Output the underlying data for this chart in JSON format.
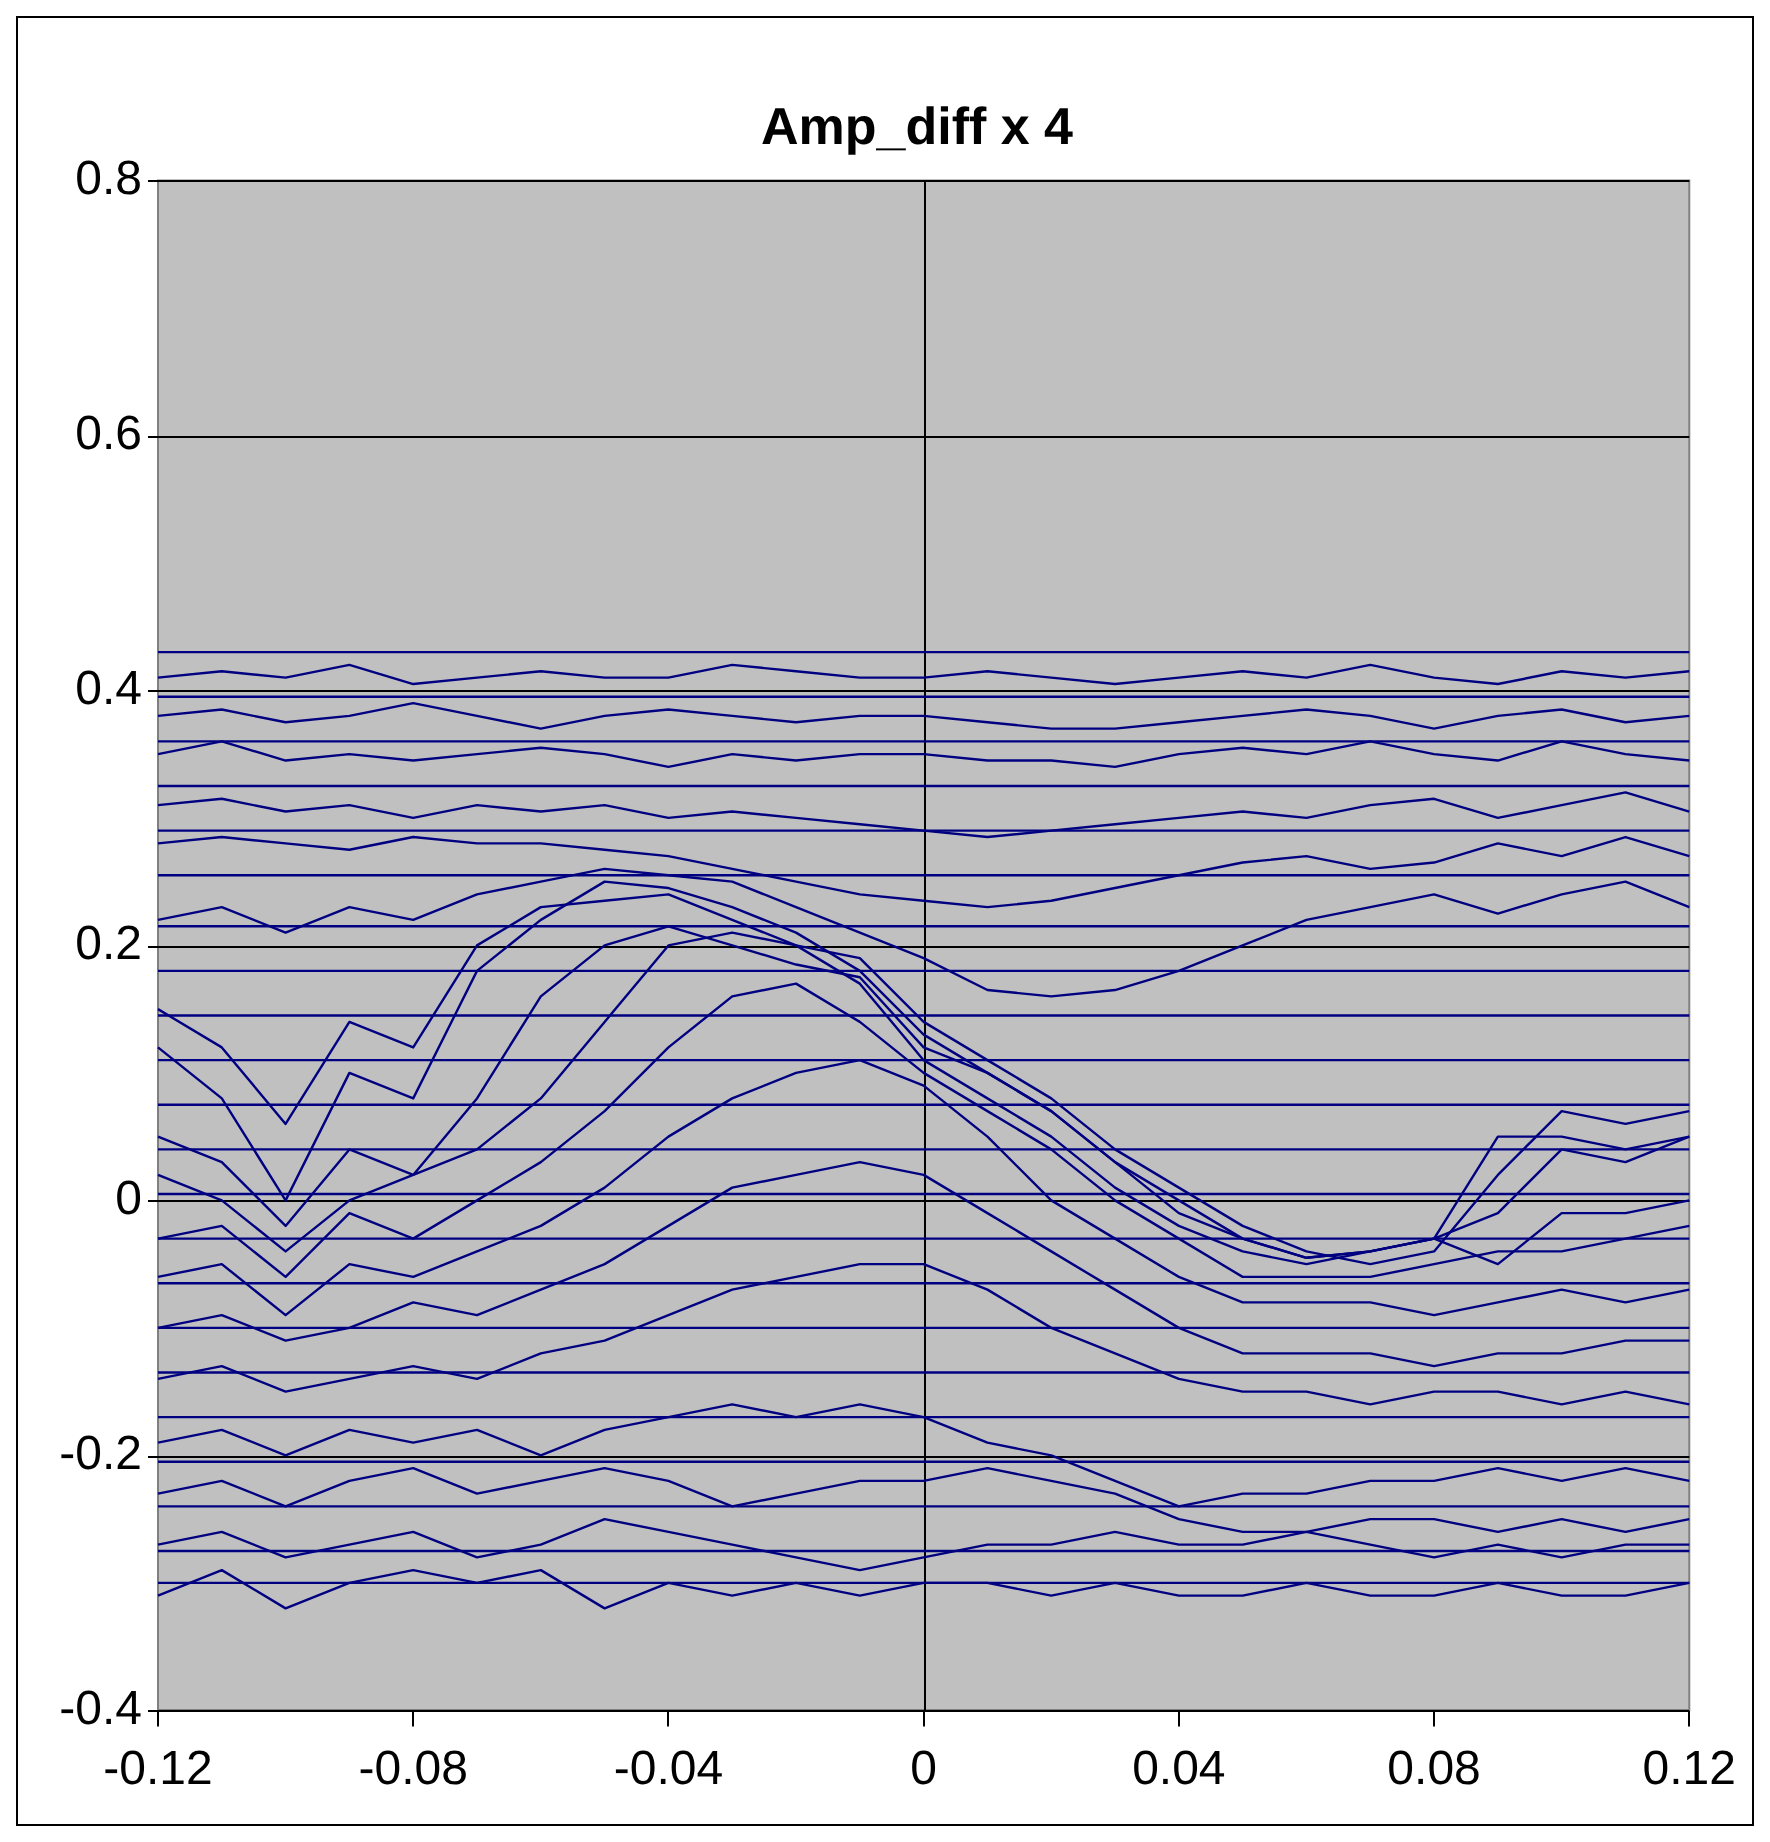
{
  "chart_data": {
    "type": "line",
    "title": "Amp_diff x 4",
    "x": [
      -0.12,
      -0.11,
      -0.1,
      -0.09,
      -0.08,
      -0.07,
      -0.06,
      -0.05,
      -0.04,
      -0.03,
      -0.02,
      -0.01,
      0,
      0.01,
      0.02,
      0.03,
      0.04,
      0.05,
      0.06,
      0.07,
      0.08,
      0.09,
      0.1,
      0.11,
      0.12
    ],
    "xlim": [
      -0.12,
      0.12
    ],
    "xticks": [
      -0.12,
      -0.08,
      -0.04,
      0,
      0.04,
      0.08,
      0.12
    ],
    "ylim": [
      -0.4,
      0.8
    ],
    "yticks": [
      -0.4,
      -0.2,
      0,
      0.2,
      0.4,
      0.6,
      0.8
    ],
    "grid": "y",
    "ref_lines": [
      {
        "axis": "x",
        "value": 0,
        "color": "#000000"
      }
    ],
    "marker": "none",
    "line_style": "solid",
    "series": [
      {
        "color": "#000080",
        "values": [
          0.41,
          0.415,
          0.41,
          0.42,
          0.405,
          0.41,
          0.415,
          0.41,
          0.41,
          0.42,
          0.415,
          0.41,
          0.41,
          0.415,
          0.41,
          0.405,
          0.41,
          0.415,
          0.41,
          0.42,
          0.41,
          0.405,
          0.415,
          0.41,
          0.415
        ]
      },
      {
        "color": "#000080",
        "values": [
          0.38,
          0.385,
          0.375,
          0.38,
          0.39,
          0.38,
          0.37,
          0.38,
          0.385,
          0.38,
          0.375,
          0.38,
          0.38,
          0.375,
          0.37,
          0.37,
          0.375,
          0.38,
          0.385,
          0.38,
          0.37,
          0.38,
          0.385,
          0.375,
          0.38
        ]
      },
      {
        "color": "#000080",
        "values": [
          0.35,
          0.36,
          0.345,
          0.35,
          0.345,
          0.35,
          0.355,
          0.35,
          0.34,
          0.35,
          0.345,
          0.35,
          0.35,
          0.345,
          0.345,
          0.34,
          0.35,
          0.355,
          0.35,
          0.36,
          0.35,
          0.345,
          0.36,
          0.35,
          0.345
        ]
      },
      {
        "color": "#000080",
        "values": [
          0.31,
          0.315,
          0.305,
          0.31,
          0.3,
          0.31,
          0.305,
          0.31,
          0.3,
          0.305,
          0.3,
          0.295,
          0.29,
          0.285,
          0.29,
          0.295,
          0.3,
          0.305,
          0.3,
          0.31,
          0.315,
          0.3,
          0.31,
          0.32,
          0.305
        ]
      },
      {
        "color": "#000080",
        "values": [
          0.28,
          0.285,
          0.28,
          0.275,
          0.285,
          0.28,
          0.28,
          0.275,
          0.27,
          0.26,
          0.25,
          0.24,
          0.235,
          0.23,
          0.235,
          0.245,
          0.255,
          0.265,
          0.27,
          0.26,
          0.265,
          0.28,
          0.27,
          0.285,
          0.27
        ]
      },
      {
        "color": "#000080",
        "values": [
          0.22,
          0.23,
          0.21,
          0.23,
          0.22,
          0.24,
          0.25,
          0.26,
          0.255,
          0.25,
          0.23,
          0.21,
          0.19,
          0.165,
          0.16,
          0.165,
          0.18,
          0.2,
          0.22,
          0.23,
          0.24,
          0.225,
          0.24,
          0.25,
          0.23
        ]
      },
      {
        "color": "#000080",
        "values": [
          0.12,
          0.08,
          0,
          0.1,
          0.08,
          0.18,
          0.22,
          0.25,
          0.245,
          0.23,
          0.21,
          0.18,
          0.13,
          0.1,
          0.07,
          0.03,
          0,
          -0.03,
          -0.045,
          -0.04,
          -0.03,
          0.05,
          0.05,
          0.04,
          0.05
        ]
      },
      {
        "color": "#000080",
        "values": [
          0.15,
          0.12,
          0.06,
          0.14,
          0.12,
          0.2,
          0.23,
          0.235,
          0.24,
          0.22,
          0.2,
          0.19,
          0.14,
          0.11,
          0.08,
          0.04,
          0.01,
          -0.02,
          -0.04,
          -0.05,
          -0.04,
          0.02,
          0.07,
          0.06,
          0.07
        ]
      },
      {
        "color": "#000080",
        "values": [
          0.05,
          0.03,
          -0.02,
          0.04,
          0.02,
          0.08,
          0.16,
          0.2,
          0.215,
          0.2,
          0.185,
          0.175,
          0.12,
          0.1,
          0.07,
          0.03,
          -0.01,
          -0.03,
          -0.045,
          -0.04,
          -0.03,
          -0.01,
          0.04,
          0.03,
          0.05
        ]
      },
      {
        "color": "#000080",
        "values": [
          0.02,
          0,
          -0.04,
          0,
          0.02,
          0.04,
          0.08,
          0.14,
          0.2,
          0.21,
          0.2,
          0.17,
          0.11,
          0.08,
          0.05,
          0.01,
          -0.02,
          -0.04,
          -0.05,
          -0.04,
          -0.03,
          -0.05,
          -0.01,
          -0.01,
          0
        ]
      },
      {
        "color": "#000080",
        "values": [
          -0.03,
          -0.02,
          -0.06,
          -0.01,
          -0.03,
          0,
          0.03,
          0.07,
          0.12,
          0.16,
          0.17,
          0.14,
          0.1,
          0.07,
          0.04,
          0,
          -0.03,
          -0.06,
          -0.06,
          -0.06,
          -0.05,
          -0.04,
          -0.04,
          -0.03,
          -0.02
        ]
      },
      {
        "color": "#000080",
        "values": [
          -0.06,
          -0.05,
          -0.09,
          -0.05,
          -0.06,
          -0.04,
          -0.02,
          0.01,
          0.05,
          0.08,
          0.1,
          0.11,
          0.09,
          0.05,
          0,
          -0.03,
          -0.06,
          -0.08,
          -0.08,
          -0.08,
          -0.09,
          -0.08,
          -0.07,
          -0.08,
          -0.07
        ]
      },
      {
        "color": "#000080",
        "values": [
          -0.1,
          -0.09,
          -0.11,
          -0.1,
          -0.08,
          -0.09,
          -0.07,
          -0.05,
          -0.02,
          0.01,
          0.02,
          0.03,
          0.02,
          -0.01,
          -0.04,
          -0.07,
          -0.1,
          -0.12,
          -0.12,
          -0.12,
          -0.13,
          -0.12,
          -0.12,
          -0.11,
          -0.11
        ]
      },
      {
        "color": "#000080",
        "values": [
          -0.14,
          -0.13,
          -0.15,
          -0.14,
          -0.13,
          -0.14,
          -0.12,
          -0.11,
          -0.09,
          -0.07,
          -0.06,
          -0.05,
          -0.05,
          -0.07,
          -0.1,
          -0.12,
          -0.14,
          -0.15,
          -0.15,
          -0.16,
          -0.15,
          -0.15,
          -0.16,
          -0.15,
          -0.16
        ]
      },
      {
        "color": "#000080",
        "values": [
          -0.19,
          -0.18,
          -0.2,
          -0.18,
          -0.19,
          -0.18,
          -0.2,
          -0.18,
          -0.17,
          -0.16,
          -0.17,
          -0.16,
          -0.17,
          -0.19,
          -0.2,
          -0.22,
          -0.24,
          -0.23,
          -0.23,
          -0.22,
          -0.22,
          -0.21,
          -0.22,
          -0.21,
          -0.22
        ]
      },
      {
        "color": "#000080",
        "values": [
          -0.23,
          -0.22,
          -0.24,
          -0.22,
          -0.21,
          -0.23,
          -0.22,
          -0.21,
          -0.22,
          -0.24,
          -0.23,
          -0.22,
          -0.22,
          -0.21,
          -0.22,
          -0.23,
          -0.25,
          -0.26,
          -0.26,
          -0.25,
          -0.25,
          -0.26,
          -0.25,
          -0.26,
          -0.25
        ]
      },
      {
        "color": "#000080",
        "values": [
          -0.27,
          -0.26,
          -0.28,
          -0.27,
          -0.26,
          -0.28,
          -0.27,
          -0.25,
          -0.26,
          -0.27,
          -0.28,
          -0.29,
          -0.28,
          -0.27,
          -0.27,
          -0.26,
          -0.27,
          -0.27,
          -0.26,
          -0.27,
          -0.28,
          -0.27,
          -0.28,
          -0.27,
          -0.27
        ]
      },
      {
        "color": "#000080",
        "values": [
          -0.31,
          -0.29,
          -0.32,
          -0.3,
          -0.29,
          -0.3,
          -0.29,
          -0.32,
          -0.3,
          -0.31,
          -0.3,
          -0.31,
          -0.3,
          -0.3,
          -0.31,
          -0.3,
          -0.31,
          -0.31,
          -0.3,
          -0.31,
          -0.31,
          -0.3,
          -0.31,
          -0.31,
          -0.3
        ]
      },
      {
        "color": "#000080",
        "values": [
          0.43,
          0.43,
          0.43,
          0.43,
          0.43,
          0.43,
          0.43,
          0.43,
          0.43,
          0.43,
          0.43,
          0.43,
          0.43,
          0.43,
          0.43,
          0.43,
          0.43,
          0.43,
          0.43,
          0.43,
          0.43,
          0.43,
          0.43,
          0.43,
          0.43
        ]
      },
      {
        "color": "#000080",
        "values": [
          0.395,
          0.395,
          0.395,
          0.395,
          0.395,
          0.395,
          0.395,
          0.395,
          0.395,
          0.395,
          0.395,
          0.395,
          0.395,
          0.395,
          0.395,
          0.395,
          0.395,
          0.395,
          0.395,
          0.395,
          0.395,
          0.395,
          0.395,
          0.395,
          0.395
        ]
      },
      {
        "color": "#000080",
        "values": [
          0.36,
          0.36,
          0.36,
          0.36,
          0.36,
          0.36,
          0.36,
          0.36,
          0.36,
          0.36,
          0.36,
          0.36,
          0.36,
          0.36,
          0.36,
          0.36,
          0.36,
          0.36,
          0.36,
          0.36,
          0.36,
          0.36,
          0.36,
          0.36,
          0.36
        ]
      },
      {
        "color": "#000080",
        "values": [
          0.325,
          0.325,
          0.325,
          0.325,
          0.325,
          0.325,
          0.325,
          0.325,
          0.325,
          0.325,
          0.325,
          0.325,
          0.325,
          0.325,
          0.325,
          0.325,
          0.325,
          0.325,
          0.325,
          0.325,
          0.325,
          0.325,
          0.325,
          0.325,
          0.325
        ]
      },
      {
        "color": "#000080",
        "values": [
          0.29,
          0.29,
          0.29,
          0.29,
          0.29,
          0.29,
          0.29,
          0.29,
          0.29,
          0.29,
          0.29,
          0.29,
          0.29,
          0.29,
          0.29,
          0.29,
          0.29,
          0.29,
          0.29,
          0.29,
          0.29,
          0.29,
          0.29,
          0.29,
          0.29
        ]
      },
      {
        "color": "#000080",
        "values": [
          0.255,
          0.255,
          0.255,
          0.255,
          0.255,
          0.255,
          0.255,
          0.255,
          0.255,
          0.255,
          0.255,
          0.255,
          0.255,
          0.255,
          0.255,
          0.255,
          0.255,
          0.255,
          0.255,
          0.255,
          0.255,
          0.255,
          0.255,
          0.255,
          0.255
        ]
      },
      {
        "color": "#000080",
        "values": [
          0.215,
          0.215,
          0.215,
          0.215,
          0.215,
          0.215,
          0.215,
          0.215,
          0.215,
          0.215,
          0.215,
          0.215,
          0.215,
          0.215,
          0.215,
          0.215,
          0.215,
          0.215,
          0.215,
          0.215,
          0.215,
          0.215,
          0.215,
          0.215,
          0.215
        ]
      },
      {
        "color": "#000080",
        "values": [
          0.18,
          0.18,
          0.18,
          0.18,
          0.18,
          0.18,
          0.18,
          0.18,
          0.18,
          0.18,
          0.18,
          0.18,
          0.18,
          0.18,
          0.18,
          0.18,
          0.18,
          0.18,
          0.18,
          0.18,
          0.18,
          0.18,
          0.18,
          0.18,
          0.18
        ]
      },
      {
        "color": "#000080",
        "values": [
          0.145,
          0.145,
          0.145,
          0.145,
          0.145,
          0.145,
          0.145,
          0.145,
          0.145,
          0.145,
          0.145,
          0.145,
          0.145,
          0.145,
          0.145,
          0.145,
          0.145,
          0.145,
          0.145,
          0.145,
          0.145,
          0.145,
          0.145,
          0.145,
          0.145
        ]
      },
      {
        "color": "#000080",
        "values": [
          0.11,
          0.11,
          0.11,
          0.11,
          0.11,
          0.11,
          0.11,
          0.11,
          0.11,
          0.11,
          0.11,
          0.11,
          0.11,
          0.11,
          0.11,
          0.11,
          0.11,
          0.11,
          0.11,
          0.11,
          0.11,
          0.11,
          0.11,
          0.11,
          0.11
        ]
      },
      {
        "color": "#000080",
        "values": [
          0.075,
          0.075,
          0.075,
          0.075,
          0.075,
          0.075,
          0.075,
          0.075,
          0.075,
          0.075,
          0.075,
          0.075,
          0.075,
          0.075,
          0.075,
          0.075,
          0.075,
          0.075,
          0.075,
          0.075,
          0.075,
          0.075,
          0.075,
          0.075,
          0.075
        ]
      },
      {
        "color": "#000080",
        "values": [
          0.04,
          0.04,
          0.04,
          0.04,
          0.04,
          0.04,
          0.04,
          0.04,
          0.04,
          0.04,
          0.04,
          0.04,
          0.04,
          0.04,
          0.04,
          0.04,
          0.04,
          0.04,
          0.04,
          0.04,
          0.04,
          0.04,
          0.04,
          0.04,
          0.04
        ]
      },
      {
        "color": "#000080",
        "values": [
          0.005,
          0.005,
          0.005,
          0.005,
          0.005,
          0.005,
          0.005,
          0.005,
          0.005,
          0.005,
          0.005,
          0.005,
          0.005,
          0.005,
          0.005,
          0.005,
          0.005,
          0.005,
          0.005,
          0.005,
          0.005,
          0.005,
          0.005,
          0.005,
          0.005
        ]
      },
      {
        "color": "#000080",
        "values": [
          -0.03,
          -0.03,
          -0.03,
          -0.03,
          -0.03,
          -0.03,
          -0.03,
          -0.03,
          -0.03,
          -0.03,
          -0.03,
          -0.03,
          -0.03,
          -0.03,
          -0.03,
          -0.03,
          -0.03,
          -0.03,
          -0.03,
          -0.03,
          -0.03,
          -0.03,
          -0.03,
          -0.03,
          -0.03
        ]
      },
      {
        "color": "#000080",
        "values": [
          -0.065,
          -0.065,
          -0.065,
          -0.065,
          -0.065,
          -0.065,
          -0.065,
          -0.065,
          -0.065,
          -0.065,
          -0.065,
          -0.065,
          -0.065,
          -0.065,
          -0.065,
          -0.065,
          -0.065,
          -0.065,
          -0.065,
          -0.065,
          -0.065,
          -0.065,
          -0.065,
          -0.065,
          -0.065
        ]
      },
      {
        "color": "#000080",
        "values": [
          -0.1,
          -0.1,
          -0.1,
          -0.1,
          -0.1,
          -0.1,
          -0.1,
          -0.1,
          -0.1,
          -0.1,
          -0.1,
          -0.1,
          -0.1,
          -0.1,
          -0.1,
          -0.1,
          -0.1,
          -0.1,
          -0.1,
          -0.1,
          -0.1,
          -0.1,
          -0.1,
          -0.1,
          -0.1
        ]
      },
      {
        "color": "#000080",
        "values": [
          -0.135,
          -0.135,
          -0.135,
          -0.135,
          -0.135,
          -0.135,
          -0.135,
          -0.135,
          -0.135,
          -0.135,
          -0.135,
          -0.135,
          -0.135,
          -0.135,
          -0.135,
          -0.135,
          -0.135,
          -0.135,
          -0.135,
          -0.135,
          -0.135,
          -0.135,
          -0.135,
          -0.135,
          -0.135
        ]
      },
      {
        "color": "#000080",
        "values": [
          -0.17,
          -0.17,
          -0.17,
          -0.17,
          -0.17,
          -0.17,
          -0.17,
          -0.17,
          -0.17,
          -0.17,
          -0.17,
          -0.17,
          -0.17,
          -0.17,
          -0.17,
          -0.17,
          -0.17,
          -0.17,
          -0.17,
          -0.17,
          -0.17,
          -0.17,
          -0.17,
          -0.17,
          -0.17
        ]
      },
      {
        "color": "#000080",
        "values": [
          -0.205,
          -0.205,
          -0.205,
          -0.205,
          -0.205,
          -0.205,
          -0.205,
          -0.205,
          -0.205,
          -0.205,
          -0.205,
          -0.205,
          -0.205,
          -0.205,
          -0.205,
          -0.205,
          -0.205,
          -0.205,
          -0.205,
          -0.205,
          -0.205,
          -0.205,
          -0.205,
          -0.205,
          -0.205
        ]
      },
      {
        "color": "#000080",
        "values": [
          -0.24,
          -0.24,
          -0.24,
          -0.24,
          -0.24,
          -0.24,
          -0.24,
          -0.24,
          -0.24,
          -0.24,
          -0.24,
          -0.24,
          -0.24,
          -0.24,
          -0.24,
          -0.24,
          -0.24,
          -0.24,
          -0.24,
          -0.24,
          -0.24,
          -0.24,
          -0.24,
          -0.24,
          -0.24
        ]
      },
      {
        "color": "#000080",
        "values": [
          -0.275,
          -0.275,
          -0.275,
          -0.275,
          -0.275,
          -0.275,
          -0.275,
          -0.275,
          -0.275,
          -0.275,
          -0.275,
          -0.275,
          -0.275,
          -0.275,
          -0.275,
          -0.275,
          -0.275,
          -0.275,
          -0.275,
          -0.275,
          -0.275,
          -0.275,
          -0.275,
          -0.275,
          -0.275
        ]
      },
      {
        "color": "#000080",
        "values": [
          -0.3,
          -0.3,
          -0.3,
          -0.3,
          -0.3,
          -0.3,
          -0.3,
          -0.3,
          -0.3,
          -0.3,
          -0.3,
          -0.3,
          -0.3,
          -0.3,
          -0.3,
          -0.3,
          -0.3,
          -0.3,
          -0.3,
          -0.3,
          -0.3,
          -0.3,
          -0.3,
          -0.3,
          -0.3
        ]
      }
    ]
  }
}
